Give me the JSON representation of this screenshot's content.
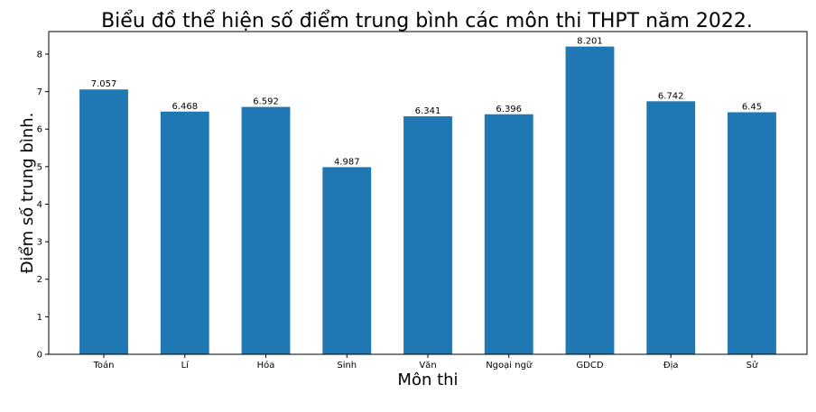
{
  "chart_data": {
    "type": "bar",
    "title": "Biểu đồ thể hiện số điểm trung bình các môn thi THPT năm 2022.",
    "xlabel": "Môn thi",
    "ylabel": "Điểm số trung bình.",
    "categories": [
      "Toán",
      "Lí",
      "Hóa",
      "Sinh",
      "Văn",
      "Ngoại ngữ",
      "GDCD",
      "Địa",
      "Sử"
    ],
    "values": [
      7.057,
      6.468,
      6.592,
      4.987,
      6.341,
      6.396,
      8.201,
      6.742,
      6.45
    ],
    "data_labels": [
      "7.057",
      "6.468",
      "6.592",
      "4.987",
      "6.341",
      "6.396",
      "8.201",
      "6.742",
      "6.45"
    ],
    "yticks": [
      "0",
      "1",
      "2",
      "3",
      "4",
      "5",
      "6",
      "7",
      "8"
    ],
    "ylim": [
      0,
      8.6
    ],
    "grid": false,
    "bar_color": "#1f77b4"
  }
}
